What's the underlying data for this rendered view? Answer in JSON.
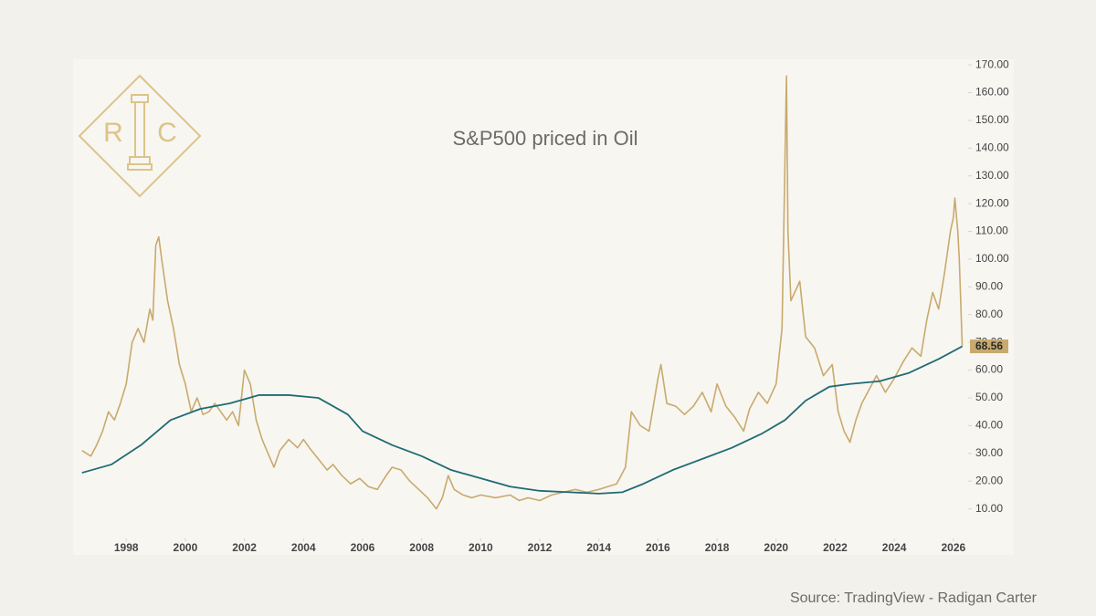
{
  "logo": {
    "left": "R",
    "right": "C"
  },
  "source": "Source: TradingView - Radigan Carter",
  "chart_data": {
    "type": "line",
    "title": "S&P500 priced in Oil",
    "xlim": [
      1996.2,
      2026.5
    ],
    "xticks": [
      1998,
      2000,
      2002,
      2004,
      2006,
      2008,
      2010,
      2012,
      2014,
      2016,
      2018,
      2020,
      2022,
      2024,
      2026
    ],
    "ylim": [
      0,
      172
    ],
    "yticks": [
      {
        "value": 10,
        "label": "10.00"
      },
      {
        "value": 20,
        "label": "20.00"
      },
      {
        "value": 30,
        "label": "30.00"
      },
      {
        "value": 40,
        "label": "40.00"
      },
      {
        "value": 50,
        "label": "50.00"
      },
      {
        "value": 60,
        "label": "60.00"
      },
      {
        "value": 70,
        "label": "70.00"
      },
      {
        "value": 80,
        "label": "80.00"
      },
      {
        "value": 90,
        "label": "90.00"
      },
      {
        "value": 100,
        "label": "100.00"
      },
      {
        "value": 110,
        "label": "110.00"
      },
      {
        "value": 120,
        "label": "120.00"
      },
      {
        "value": 130,
        "label": "130.00"
      },
      {
        "value": 140,
        "label": "140.00"
      },
      {
        "value": 150,
        "label": "150.00"
      },
      {
        "value": 160,
        "label": "160.00"
      },
      {
        "value": 170,
        "label": "170.00"
      }
    ],
    "current_value": 68.56,
    "current_color": "#c8aa6e",
    "series": [
      {
        "color": "#c8aa6e",
        "x": [
          1996.5,
          1996.8,
          1997.0,
          1997.2,
          1997.4,
          1997.6,
          1997.8,
          1998.0,
          1998.2,
          1998.4,
          1998.6,
          1998.8,
          1998.9,
          1999.0,
          1999.1,
          1999.2,
          1999.4,
          1999.6,
          1999.8,
          2000.0,
          2000.2,
          2000.4,
          2000.6,
          2000.8,
          2001.0,
          2001.2,
          2001.4,
          2001.6,
          2001.8,
          2002.0,
          2002.2,
          2002.4,
          2002.6,
          2002.8,
          2003.0,
          2003.2,
          2003.5,
          2003.8,
          2004.0,
          2004.2,
          2004.5,
          2004.8,
          2005.0,
          2005.3,
          2005.6,
          2005.9,
          2006.2,
          2006.5,
          2006.8,
          2007.0,
          2007.3,
          2007.6,
          2007.9,
          2008.2,
          2008.5,
          2008.7,
          2008.9,
          2009.1,
          2009.4,
          2009.7,
          2010.0,
          2010.5,
          2011.0,
          2011.3,
          2011.6,
          2012.0,
          2012.4,
          2012.8,
          2013.2,
          2013.6,
          2014.0,
          2014.3,
          2014.6,
          2014.9,
          2015.1,
          2015.4,
          2015.7,
          2016.0,
          2016.1,
          2016.3,
          2016.6,
          2016.9,
          2017.2,
          2017.5,
          2017.8,
          2018.0,
          2018.3,
          2018.6,
          2018.9,
          2019.1,
          2019.4,
          2019.7,
          2020.0,
          2020.2,
          2020.35,
          2020.4,
          2020.5,
          2020.8,
          2021.0,
          2021.3,
          2021.6,
          2021.9,
          2022.1,
          2022.3,
          2022.5,
          2022.7,
          2022.9,
          2023.1,
          2023.4,
          2023.7,
          2024.0,
          2024.3,
          2024.6,
          2024.9,
          2025.1,
          2025.3,
          2025.5,
          2025.7,
          2025.9,
          2026.0,
          2026.05,
          2026.15,
          2026.2,
          2026.3
        ],
        "values": [
          31,
          29,
          33,
          38,
          45,
          42,
          48,
          55,
          70,
          75,
          70,
          82,
          78,
          105,
          108,
          100,
          85,
          75,
          62,
          55,
          45,
          50,
          44,
          45,
          48,
          45,
          42,
          45,
          40,
          60,
          55,
          42,
          35,
          30,
          25,
          31,
          35,
          32,
          35,
          32,
          28,
          24,
          26,
          22,
          19,
          21,
          18,
          17,
          22,
          25,
          24,
          20,
          17,
          14,
          10,
          14,
          22,
          17,
          15,
          14,
          15,
          14,
          15,
          13,
          14,
          13,
          15,
          16,
          17,
          16,
          17,
          18,
          19,
          25,
          45,
          40,
          38,
          57,
          62,
          48,
          47,
          44,
          47,
          52,
          45,
          55,
          47,
          43,
          38,
          46,
          52,
          48,
          55,
          75,
          166,
          110,
          85,
          92,
          72,
          68,
          58,
          62,
          45,
          38,
          34,
          42,
          48,
          52,
          58,
          52,
          57,
          63,
          68,
          65,
          78,
          88,
          82,
          95,
          110,
          115,
          122,
          110,
          100,
          68.56
        ]
      },
      {
        "color": "#1f6b75",
        "x": [
          1996.5,
          1997.5,
          1998.5,
          1999.5,
          2000.5,
          2001.5,
          2002.5,
          2003.5,
          2004.5,
          2005.5,
          2006.0,
          2007.0,
          2008.0,
          2009.0,
          2010.0,
          2011.0,
          2012.0,
          2013.0,
          2014.0,
          2014.8,
          2015.5,
          2016.5,
          2017.5,
          2018.5,
          2019.5,
          2020.3,
          2021.0,
          2021.8,
          2022.5,
          2023.5,
          2024.5,
          2025.5,
          2026.3
        ],
        "values": [
          23,
          26,
          33,
          42,
          46,
          48,
          51,
          51,
          50,
          44,
          38,
          33,
          29,
          24,
          21,
          18,
          16.5,
          16,
          15.5,
          16,
          19,
          24,
          28,
          32,
          37,
          42,
          49,
          54,
          55,
          56,
          59,
          64,
          68.56
        ]
      }
    ]
  }
}
